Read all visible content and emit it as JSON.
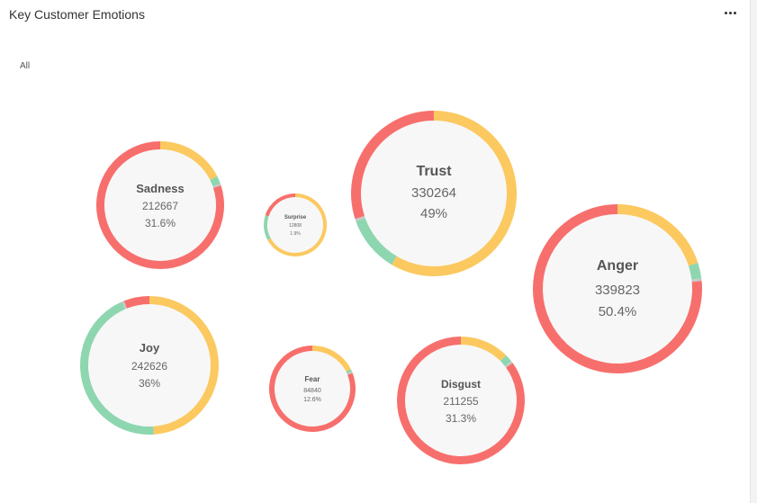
{
  "header": {
    "title": "Key Customer Emotions",
    "menu_icon": "more-horizontal-icon"
  },
  "filter": {
    "label": "All"
  },
  "colors": {
    "red": "#f76f6c",
    "yellow": "#fbc960",
    "green": "#8ed6b0",
    "gray": "#c7c7c7",
    "inner": "#f7f7f7"
  },
  "chart_data": {
    "type": "bubble-donut",
    "segment_order": [
      "red",
      "gray",
      "green",
      "yellow"
    ],
    "bubbles": [
      {
        "emotion": "Sadness",
        "count": "212667",
        "percent": "31.6%",
        "segments": [
          0.8,
          0.005,
          0.02,
          0.175
        ]
      },
      {
        "emotion": "Surprise",
        "count": "12808",
        "percent": "1.9%",
        "segments": [
          0.2,
          0.0,
          0.13,
          0.67
        ]
      },
      {
        "emotion": "Trust",
        "count": "330264",
        "percent": "49%",
        "segments": [
          0.3,
          0.005,
          0.11,
          0.585
        ]
      },
      {
        "emotion": "Anger",
        "count": "339823",
        "percent": "50.4%",
        "segments": [
          0.765,
          0.005,
          0.03,
          0.2
        ]
      },
      {
        "emotion": "Joy",
        "count": "242626",
        "percent": "36%",
        "segments": [
          0.06,
          0.005,
          0.445,
          0.49
        ]
      },
      {
        "emotion": "Fear",
        "count": "84840",
        "percent": "12.6%",
        "segments": [
          0.81,
          0.005,
          0.01,
          0.175
        ]
      },
      {
        "emotion": "Disgust",
        "count": "211255",
        "percent": "31.3%",
        "segments": [
          0.85,
          0.005,
          0.02,
          0.125
        ]
      }
    ]
  }
}
